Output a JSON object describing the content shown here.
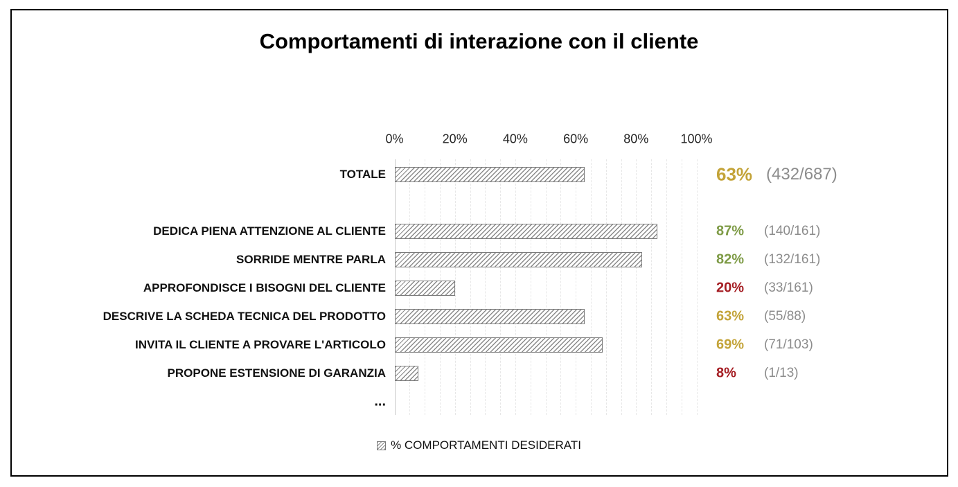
{
  "colors": {
    "gold": "#C3A338",
    "green": "#7E9B46",
    "red": "#A51D23",
    "count_gray": "#8C8C8C",
    "bar_hatch": "#8A8A8A",
    "bar_border": "#7A7A7A",
    "gridline": "#E7E7E7",
    "axis_line": "#C9C9C9",
    "frame_border": "#000000",
    "title_text": "#000000"
  },
  "chart_data": {
    "type": "bar",
    "orientation": "horizontal",
    "title": "Comportamenti di interazione con il cliente",
    "xlabel": "",
    "ylabel": "",
    "xlim": [
      0,
      100
    ],
    "minor_grid_step": 5,
    "grid": "vertical-dashed-minor",
    "legend_position": "bottom-center",
    "legend_label": "% COMPORTAMENTI DESIDERATI",
    "x_ticks": [
      {
        "label": "0%",
        "value": 0
      },
      {
        "label": "20%",
        "value": 20
      },
      {
        "label": "40%",
        "value": 40
      },
      {
        "label": "60%",
        "value": 60
      },
      {
        "label": "80%",
        "value": 80
      },
      {
        "label": "100%",
        "value": 100
      }
    ],
    "rows": [
      {
        "label": "TOTALE",
        "value_pct": 63,
        "pct_display": "63%",
        "numerator": 432,
        "denominator": 687,
        "count_display": "(432/687)",
        "status_color": "gold",
        "emphasis": true
      },
      {
        "label": "",
        "value_pct": null
      },
      {
        "label": "DEDICA PIENA ATTENZIONE AL CLIENTE",
        "value_pct": 87,
        "pct_display": "87%",
        "numerator": 140,
        "denominator": 161,
        "count_display": "(140/161)",
        "status_color": "green",
        "emphasis": false
      },
      {
        "label": "SORRIDE MENTRE PARLA",
        "value_pct": 82,
        "pct_display": "82%",
        "numerator": 132,
        "denominator": 161,
        "count_display": "(132/161)",
        "status_color": "green",
        "emphasis": false
      },
      {
        "label": "APPROFONDISCE I BISOGNI DEL CLIENTE",
        "value_pct": 20,
        "pct_display": "20%",
        "numerator": 33,
        "denominator": 161,
        "count_display": "(33/161)",
        "status_color": "red",
        "emphasis": false
      },
      {
        "label": "DESCRIVE LA SCHEDA TECNICA DEL PRODOTTO",
        "value_pct": 63,
        "pct_display": "63%",
        "numerator": 55,
        "denominator": 88,
        "count_display": "(55/88)",
        "status_color": "gold",
        "emphasis": false
      },
      {
        "label": "INVITA IL CLIENTE A PROVARE L'ARTICOLO",
        "value_pct": 69,
        "pct_display": "69%",
        "numerator": 71,
        "denominator": 103,
        "count_display": "(71/103)",
        "status_color": "gold",
        "emphasis": false
      },
      {
        "label": "PROPONE ESTENSIONE DI GARANZIA",
        "value_pct": 8,
        "pct_display": "8%",
        "numerator": 1,
        "denominator": 13,
        "count_display": "(1/13)",
        "status_color": "red",
        "emphasis": false
      },
      {
        "label": "...",
        "value_pct": null
      }
    ]
  }
}
